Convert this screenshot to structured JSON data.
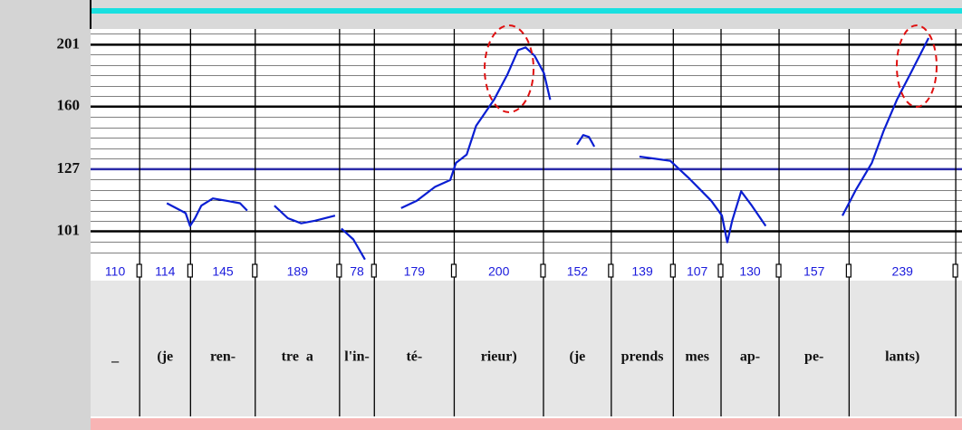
{
  "chart_data": {
    "type": "line",
    "log_y": true,
    "ylim": [
      90,
      213
    ],
    "yticks": [
      101,
      127,
      160,
      201
    ],
    "tick_line_colors": [
      "#000000",
      "#2a2aa8",
      "#000000",
      "#000000"
    ],
    "xlim": [
      0,
      1953
    ],
    "grid": true,
    "segments": [
      {
        "duration": 110,
        "label": "_"
      },
      {
        "duration": 114,
        "label": "(je"
      },
      {
        "duration": 145,
        "label": "ren-"
      },
      {
        "duration": 189,
        "label": "tre  a"
      },
      {
        "duration": 78,
        "label": "l'in-"
      },
      {
        "duration": 179,
        "label": "té-"
      },
      {
        "duration": 200,
        "label": "rieur)"
      },
      {
        "duration": 152,
        "label": "(je"
      },
      {
        "duration": 139,
        "label": "prends"
      },
      {
        "duration": 107,
        "label": "mes"
      },
      {
        "duration": 130,
        "label": "ap-"
      },
      {
        "duration": 157,
        "label": "pe-"
      },
      {
        "duration": 239,
        "label": "lants)"
      }
    ],
    "color": "#0a1ed2",
    "contours": [
      {
        "x": [
          171,
          213,
          223,
          234,
          248,
          274,
          305,
          335,
          351
        ],
        "values": [
          112,
          108,
          103,
          106,
          111,
          114,
          113,
          112,
          109
        ]
      },
      {
        "x": [
          412,
          442,
          472,
          503,
          548
        ],
        "values": [
          111,
          106,
          104,
          105,
          107
        ]
      },
      {
        "x": [
          562,
          589,
          615
        ],
        "values": [
          102,
          98,
          91
        ]
      },
      {
        "x": [
          696,
          731,
          772,
          806,
          819,
          843,
          864,
          904,
          934,
          958,
          975,
          995,
          1016,
          1030
        ],
        "values": [
          110,
          113,
          119,
          122,
          130,
          134,
          149,
          164,
          180,
          197,
          199,
          193,
          181,
          164
        ]
      },
      {
        "x": [
          1090,
          1104,
          1117,
          1129
        ],
        "values": [
          139,
          144,
          143,
          138
        ]
      },
      {
        "x": [
          1230,
          1299,
          1340,
          1391,
          1415,
          1427,
          1438,
          1458,
          1482,
          1513
        ],
        "values": [
          133,
          131,
          123,
          113,
          107,
          97,
          105,
          117,
          111,
          103
        ]
      },
      {
        "x": [
          1685,
          1716,
          1751,
          1777,
          1807,
          1838,
          1878
        ],
        "values": [
          107,
          118,
          130,
          146,
          164,
          181,
          206
        ]
      }
    ]
  }
}
